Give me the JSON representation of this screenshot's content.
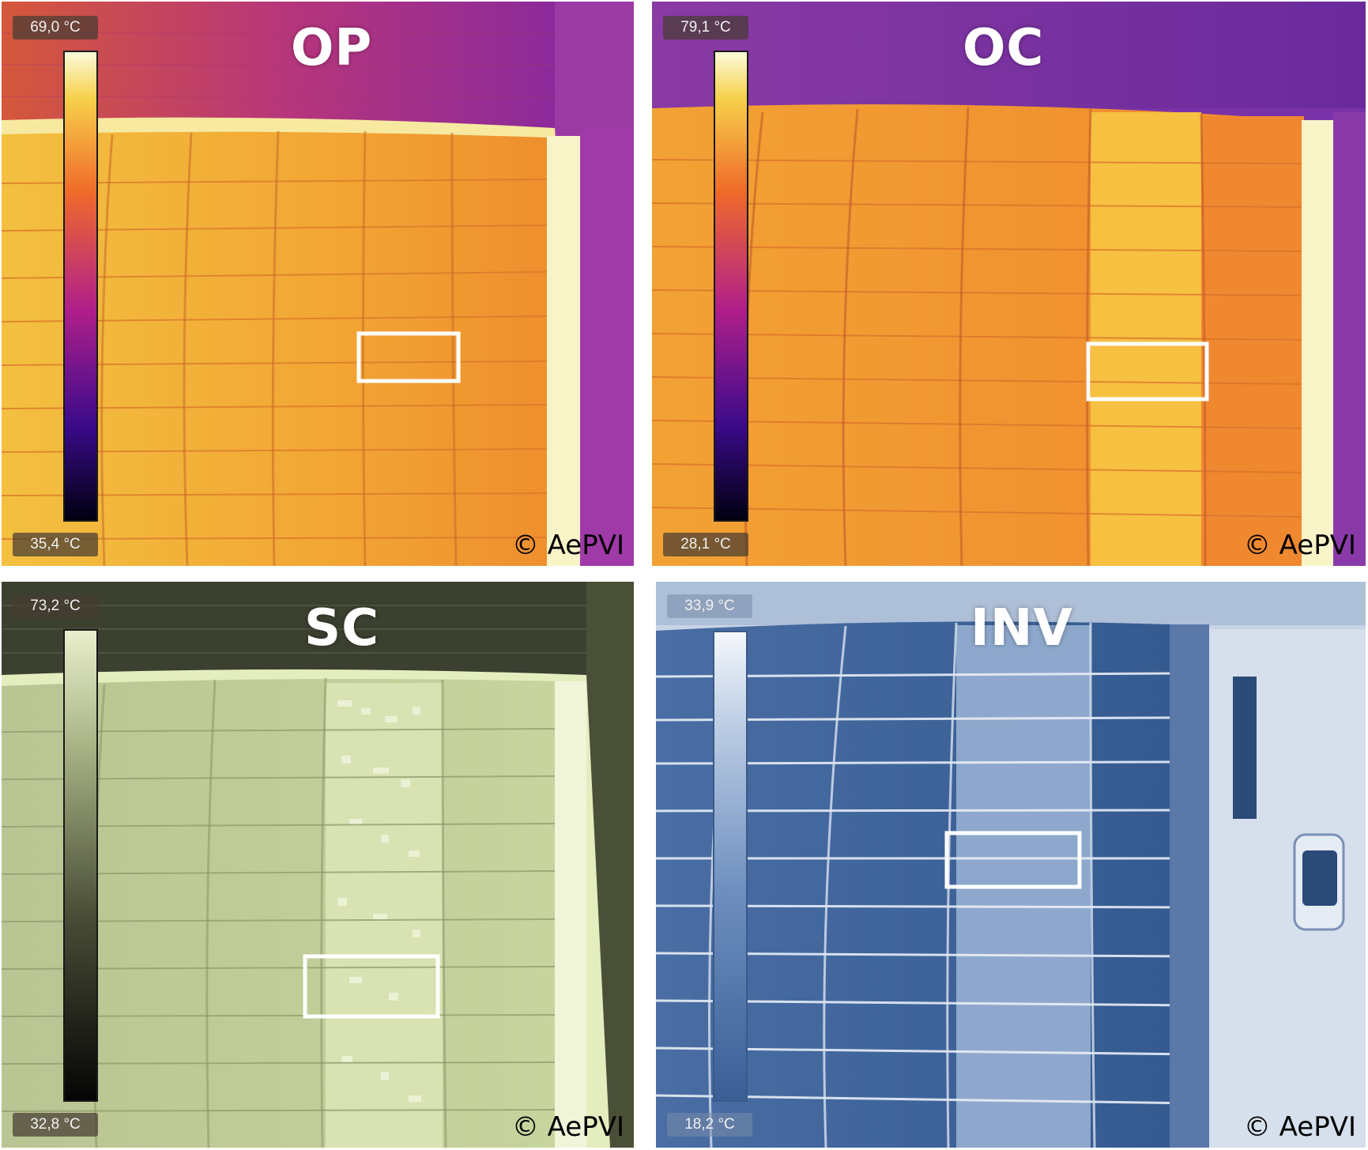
{
  "panels": {
    "op": {
      "title": "OP",
      "max_temp": "69,0 °C",
      "min_temp": "35,4 °C",
      "copyright": "© AePVI"
    },
    "oc": {
      "title": "OC",
      "max_temp": "79,1 °C",
      "min_temp": "28,1 °C",
      "copyright": "© AePVI"
    },
    "sc": {
      "title": "SC",
      "max_temp": "73,2 °C",
      "min_temp": "32,8 °C",
      "copyright": "© AePVI"
    },
    "inv": {
      "title": "INV",
      "max_temp": "33,9 °C",
      "min_temp": "18,2 °C",
      "copyright": "© AePVI"
    }
  },
  "colors": {
    "ironbow_hot": "#f5c63a",
    "ironbow_mid": "#f0922a",
    "roof_purple": "#a23a8c",
    "sc_panel": "#c9d6a0",
    "inv_panel": "#3a629e",
    "highlight_box": "#ffffff"
  }
}
